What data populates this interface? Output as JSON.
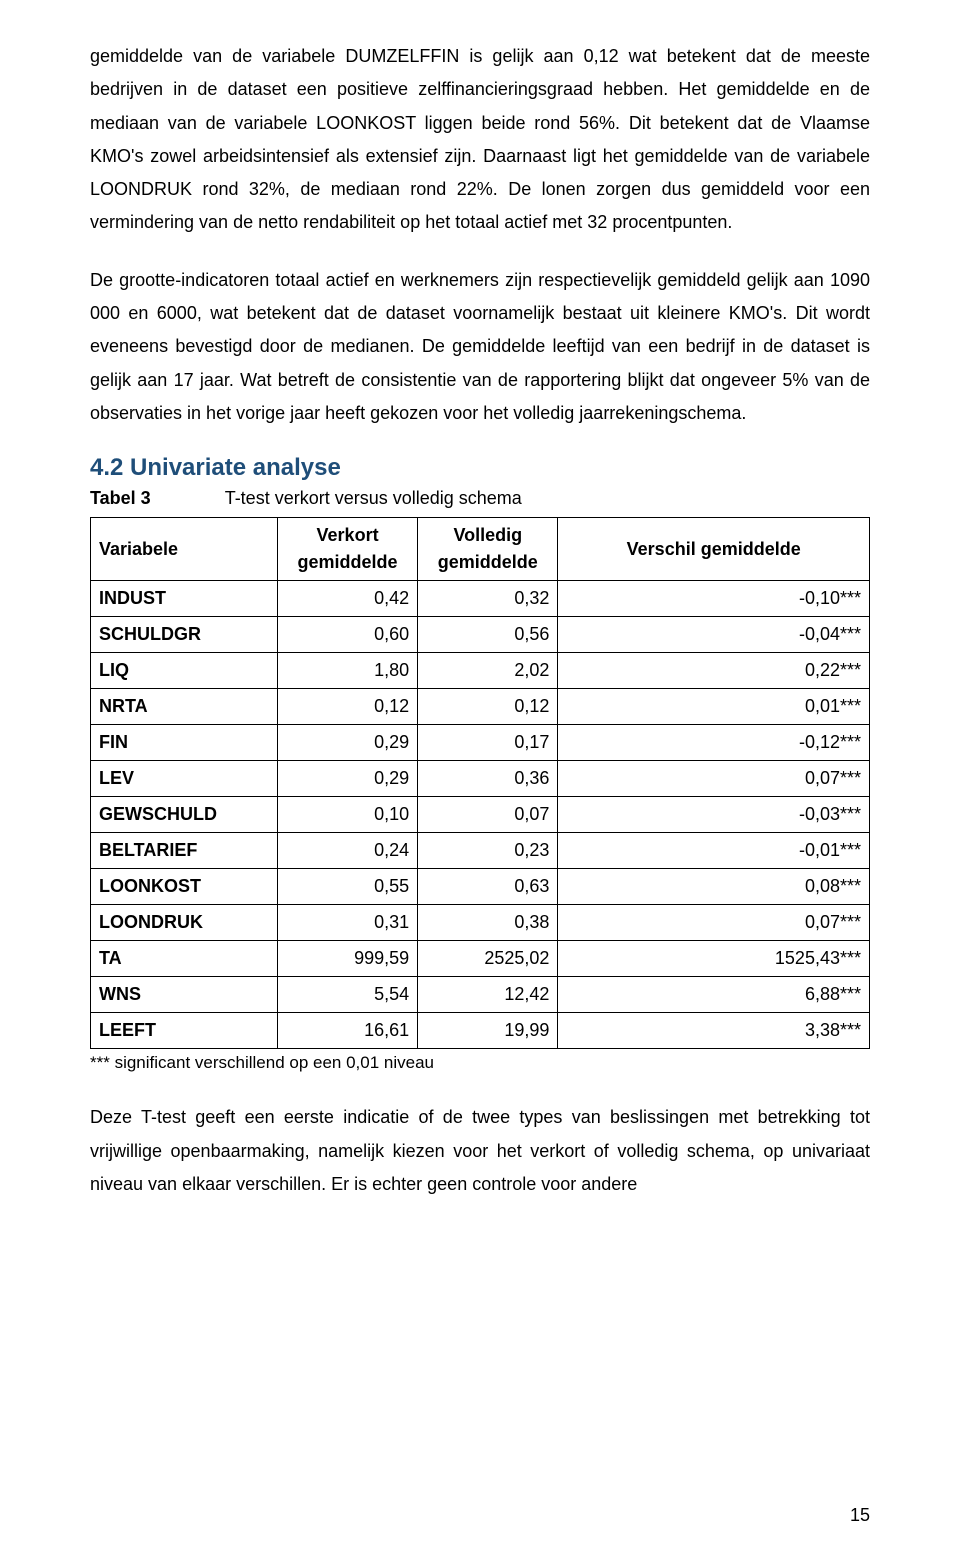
{
  "paragraphs": {
    "p1": "gemiddelde van de variabele DUMZELFFIN is gelijk aan 0,12 wat betekent dat de meeste bedrijven in de dataset een positieve zelffinancieringsgraad hebben. Het gemiddelde en de mediaan van de variabele LOONKOST liggen beide rond 56%. Dit betekent dat de Vlaamse KMO's zowel arbeidsintensief als extensief zijn. Daarnaast ligt het gemiddelde van de variabele LOONDRUK rond 32%, de mediaan rond 22%. De lonen zorgen dus gemiddeld voor een vermindering van de netto rendabiliteit op het totaal actief met 32 procentpunten.",
    "p2": "De grootte-indicatoren totaal actief en werknemers zijn respectievelijk gemiddeld gelijk aan 1090 000 en 6000, wat betekent dat de dataset voornamelijk bestaat uit kleinere KMO's. Dit wordt eveneens bevestigd door de medianen. De gemiddelde leeftijd van een bedrijf in de dataset is gelijk aan 17 jaar. Wat betreft de consistentie van de rapportering blijkt dat ongeveer 5% van de observaties in het vorige jaar heeft gekozen voor het volledig jaarrekeningschema.",
    "p3": "Deze T-test geeft een eerste indicatie of de twee types van beslissingen met betrekking tot vrijwillige openbaarmaking, namelijk kiezen voor het verkort of volledig schema, op univariaat niveau van elkaar verschillen. Er is echter geen controle voor andere"
  },
  "section_heading": "4.2 Univariate analyse",
  "table": {
    "label": "Tabel 3",
    "caption": "T-test verkort versus volledig schema",
    "headers": {
      "col0": "Variabele",
      "col1_top": "Verkort",
      "col1_bot": "gemiddelde",
      "col2_top": "Volledig",
      "col2_bot": "gemiddelde",
      "col3": "Verschil gemiddelde"
    },
    "rows": [
      {
        "var": "INDUST",
        "v1": "0,42",
        "v2": "0,32",
        "d": "-0,10***"
      },
      {
        "var": "SCHULDGR",
        "v1": "0,60",
        "v2": "0,56",
        "d": "-0,04***"
      },
      {
        "var": "LIQ",
        "v1": "1,80",
        "v2": "2,02",
        "d": "0,22***"
      },
      {
        "var": "NRTA",
        "v1": "0,12",
        "v2": "0,12",
        "d": "0,01***"
      },
      {
        "var": "FIN",
        "v1": "0,29",
        "v2": "0,17",
        "d": "-0,12***"
      },
      {
        "var": "LEV",
        "v1": "0,29",
        "v2": "0,36",
        "d": "0,07***"
      },
      {
        "var": "GEWSCHULD",
        "v1": "0,10",
        "v2": "0,07",
        "d": "-0,03***"
      },
      {
        "var": "BELTARIEF",
        "v1": "0,24",
        "v2": "0,23",
        "d": "-0,01***"
      },
      {
        "var": "LOONKOST",
        "v1": "0,55",
        "v2": "0,63",
        "d": "0,08***"
      },
      {
        "var": "LOONDRUK",
        "v1": "0,31",
        "v2": "0,38",
        "d": "0,07***"
      },
      {
        "var": "TA",
        "v1": "999,59",
        "v2": "2525,02",
        "d": "1525,43***"
      },
      {
        "var": "WNS",
        "v1": "5,54",
        "v2": "12,42",
        "d": "6,88***"
      },
      {
        "var": "LEEFT",
        "v1": "16,61",
        "v2": "19,99",
        "d": "3,38***"
      }
    ],
    "footnote": "*** significant verschillend op een 0,01 niveau"
  },
  "page_number": "15",
  "colors": {
    "heading": "#1f4e79",
    "text": "#000000",
    "border": "#000000",
    "background": "#ffffff"
  },
  "typography": {
    "body_fontsize_pt": 12,
    "heading_fontsize_pt": 16,
    "line_height": 1.85
  }
}
